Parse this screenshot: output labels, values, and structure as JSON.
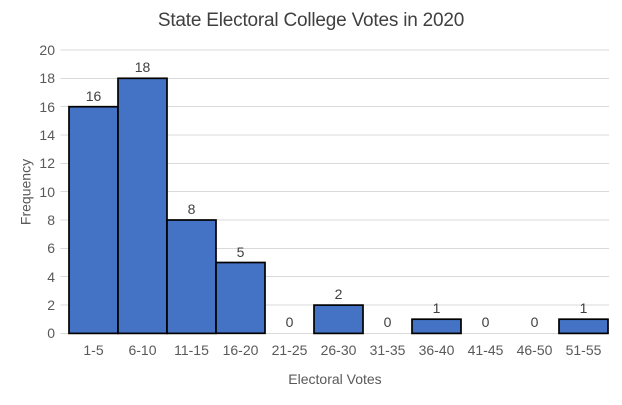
{
  "chart_data": {
    "type": "bar",
    "subtype": "histogram",
    "title": "State Electoral College Votes in 2020",
    "xlabel": "Electoral Votes",
    "ylabel": "Frequency",
    "categories": [
      "1-5",
      "6-10",
      "11-15",
      "16-20",
      "21-25",
      "26-30",
      "31-35",
      "36-40",
      "41-45",
      "46-50",
      "51-55"
    ],
    "values": [
      16,
      18,
      8,
      5,
      0,
      2,
      0,
      1,
      0,
      0,
      1
    ],
    "ylim": [
      0,
      20
    ],
    "ytick_step": 2,
    "yticks": [
      0,
      2,
      4,
      6,
      8,
      10,
      12,
      14,
      16,
      18,
      20
    ],
    "grid": true,
    "legend": "none",
    "data_labels": "outside-end",
    "style": {
      "bar_fill": "#4472C4",
      "bar_border": "#000000",
      "gridline": "#D9D9D9",
      "tick_text": "#595959",
      "axis_title_text": "#595959",
      "data_label_text": "#404040",
      "title_text": "#404040",
      "background": "#FFFFFF"
    }
  }
}
